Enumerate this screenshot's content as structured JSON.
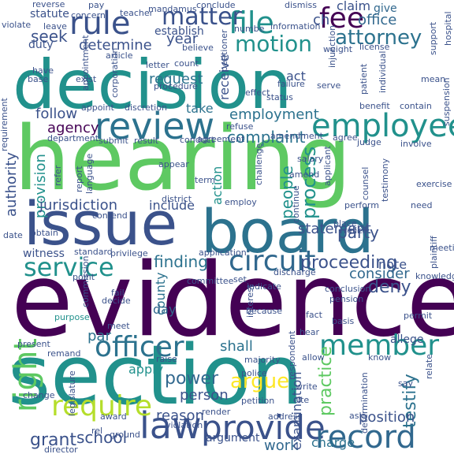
{
  "words": [
    {
      "text": "evidence",
      "color": "#440154"
    },
    {
      "text": "hearing",
      "color": "#5ec962"
    },
    {
      "text": "decision",
      "color": "#21918c"
    },
    {
      "text": "section",
      "color": "#21918c"
    },
    {
      "text": "issue",
      "color": "#3b528b"
    },
    {
      "text": "board",
      "color": "#2c728e"
    },
    {
      "text": "review",
      "color": "#2c728e"
    },
    {
      "text": "provide",
      "color": "#3b528b"
    },
    {
      "text": "employee",
      "color": "#21918c"
    },
    {
      "text": "circuit",
      "color": "#31688e"
    },
    {
      "text": "record",
      "color": "#31688e"
    },
    {
      "text": "service",
      "color": "#21918c"
    },
    {
      "text": "officer",
      "color": "#2c728e"
    },
    {
      "text": "member",
      "color": "#21918c"
    },
    {
      "text": "law",
      "color": "#3b528b"
    },
    {
      "text": "rule",
      "color": "#3b528b"
    },
    {
      "text": "file",
      "color": "#21918c"
    },
    {
      "text": "fee",
      "color": "#440154"
    },
    {
      "text": "require",
      "color": "#b5de2b"
    },
    {
      "text": "matter",
      "color": "#3b528b"
    },
    {
      "text": "motion",
      "color": "#21918c"
    },
    {
      "text": "attorney",
      "color": "#2c728e"
    },
    {
      "text": "right",
      "color": "#5ec962"
    },
    {
      "text": "argue",
      "color": "#fde725"
    },
    {
      "text": "school",
      "color": "#3b528b"
    },
    {
      "text": "grant",
      "color": "#3b528b"
    },
    {
      "text": "power",
      "color": "#31688e"
    },
    {
      "text": "proceeding",
      "color": "#3b528b"
    },
    {
      "text": "finding",
      "color": "#2c728e"
    },
    {
      "text": "party",
      "color": "#3b528b"
    },
    {
      "text": "agency",
      "color": "#440154"
    },
    {
      "text": "complaint",
      "color": "#2c728e"
    },
    {
      "text": "employment",
      "color": "#2c728e"
    },
    {
      "text": "process",
      "color": "#21918c"
    },
    {
      "text": "people",
      "color": "#21918c"
    },
    {
      "text": "practice",
      "color": "#5ec962"
    },
    {
      "text": "testify",
      "color": "#2c728e"
    },
    {
      "text": "position",
      "color": "#3b528b"
    },
    {
      "text": "person",
      "color": "#3b528b"
    },
    {
      "text": "reason",
      "color": "#3b528b"
    },
    {
      "text": "deny",
      "color": "#3b528b"
    },
    {
      "text": "consider",
      "color": "#31688e"
    },
    {
      "text": "shall",
      "color": "#2c728e"
    },
    {
      "text": "work",
      "color": "#31688e"
    },
    {
      "text": "charge",
      "color": "#2c728e"
    },
    {
      "text": "determine",
      "color": "#3b528b"
    },
    {
      "text": "year",
      "color": "#3b528b"
    },
    {
      "text": "seek",
      "color": "#3b528b"
    },
    {
      "text": "request",
      "color": "#2c728e"
    },
    {
      "text": "follow",
      "color": "#3b528b"
    },
    {
      "text": "act",
      "color": "#3b528b"
    },
    {
      "text": "statute",
      "color": "#3b528b"
    },
    {
      "text": "duty",
      "color": "#3b528b"
    },
    {
      "text": "establish",
      "color": "#3b528b"
    },
    {
      "text": "give",
      "color": "#31688e"
    },
    {
      "text": "office",
      "color": "#31688e"
    },
    {
      "text": "claim",
      "color": "#3b528b"
    },
    {
      "text": "ch",
      "color": "#3b528b"
    },
    {
      "text": "provision",
      "color": "#21918c"
    },
    {
      "text": "authority",
      "color": "#3b528b"
    },
    {
      "text": "jurisdiction",
      "color": "#3b528b"
    },
    {
      "text": "include",
      "color": "#3b528b"
    },
    {
      "text": "statement",
      "color": "#3b528b"
    },
    {
      "text": "note",
      "color": "#3b528b"
    },
    {
      "text": "take",
      "color": "#2c728e"
    },
    {
      "text": "receive",
      "color": "#3b528b"
    },
    {
      "text": "action",
      "color": "#21918c"
    },
    {
      "text": "county",
      "color": "#2c728e"
    },
    {
      "text": "day",
      "color": "#31688e"
    },
    {
      "text": "apply",
      "color": "#21918c"
    },
    {
      "text": "par",
      "color": "#2c728e"
    },
    {
      "text": "witness",
      "color": "#3b528b"
    },
    {
      "text": "standard",
      "color": "#3b528b"
    },
    {
      "text": "privilege",
      "color": "#3b528b"
    },
    {
      "text": "committee",
      "color": "#3b528b"
    },
    {
      "text": "fail",
      "color": "#3b528b"
    },
    {
      "text": "decide",
      "color": "#3b528b"
    },
    {
      "text": "meet",
      "color": "#3b528b"
    },
    {
      "text": "purpose",
      "color": "#21918c"
    },
    {
      "text": "present",
      "color": "#3b528b"
    },
    {
      "text": "remand",
      "color": "#3b528b"
    },
    {
      "text": "raise",
      "color": "#3b528b"
    },
    {
      "text": "majority",
      "color": "#3b528b"
    },
    {
      "text": "police",
      "color": "#3b528b"
    },
    {
      "text": "petition",
      "color": "#3b528b"
    },
    {
      "text": "violation",
      "color": "#3b528b"
    },
    {
      "text": "argument",
      "color": "#3b528b"
    },
    {
      "text": "address",
      "color": "#3b528b"
    },
    {
      "text": "award",
      "color": "#3b528b"
    },
    {
      "text": "ground",
      "color": "#3b528b"
    },
    {
      "text": "change",
      "color": "#3b528b"
    },
    {
      "text": "rel",
      "color": "#3b528b"
    },
    {
      "text": "legislature",
      "color": "#3b528b"
    },
    {
      "text": "conclusion",
      "color": "#3b528b"
    },
    {
      "text": "meeting",
      "color": "#3b528b"
    },
    {
      "text": "pension",
      "color": "#3b528b"
    },
    {
      "text": "permit",
      "color": "#3b528b"
    },
    {
      "text": "allege",
      "color": "#3b528b"
    },
    {
      "text": "determination",
      "color": "#3b528b"
    },
    {
      "text": "examination",
      "color": "#3b528b"
    },
    {
      "text": "cite",
      "color": "#3b528b"
    },
    {
      "text": "write",
      "color": "#3b528b"
    },
    {
      "text": "say",
      "color": "#3b528b"
    },
    {
      "text": "basis",
      "color": "#3b528b"
    },
    {
      "text": "interest",
      "color": "#3b528b"
    },
    {
      "text": "because",
      "color": "#3b528b"
    },
    {
      "text": "indicate",
      "color": "#3b528b"
    },
    {
      "text": "set",
      "color": "#3b528b"
    },
    {
      "text": "respondent",
      "color": "#3b528b"
    },
    {
      "text": "allow",
      "color": "#3b528b"
    },
    {
      "text": "hear",
      "color": "#3b528b"
    },
    {
      "text": "salary",
      "color": "#3b528b"
    },
    {
      "text": "amend",
      "color": "#3b528b"
    },
    {
      "text": "challenge",
      "color": "#3b528b"
    },
    {
      "text": "term",
      "color": "#3b528b"
    },
    {
      "text": "district",
      "color": "#3b528b"
    },
    {
      "text": "contend",
      "color": "#3b528b"
    },
    {
      "text": "appear",
      "color": "#3b528b"
    },
    {
      "text": "conduct",
      "color": "#3b528b"
    },
    {
      "text": "agreement",
      "color": "#3b528b"
    },
    {
      "text": "result",
      "color": "#3b528b"
    },
    {
      "text": "submit",
      "color": "#3b528b"
    },
    {
      "text": "department",
      "color": "#3b528b"
    },
    {
      "text": "refuse",
      "color": "#3b528b"
    },
    {
      "text": "effect",
      "color": "#3b528b"
    },
    {
      "text": "status",
      "color": "#3b528b"
    },
    {
      "text": "failure",
      "color": "#3b528b"
    },
    {
      "text": "procedure",
      "color": "#3b528b"
    },
    {
      "text": "count",
      "color": "#3b528b"
    },
    {
      "text": "letter",
      "color": "#3b528b"
    },
    {
      "text": "appointment",
      "color": "#3b528b"
    },
    {
      "text": "base",
      "color": "#3b528b"
    },
    {
      "text": "have",
      "color": "#3b528b"
    },
    {
      "text": "exist",
      "color": "#3b528b"
    },
    {
      "text": "appoint",
      "color": "#3b528b"
    },
    {
      "text": "discretion",
      "color": "#3b528b"
    },
    {
      "text": "mandamus",
      "color": "#3b528b"
    },
    {
      "text": "conclude",
      "color": "#3b528b"
    },
    {
      "text": "dismiss",
      "color": "#3b528b"
    },
    {
      "text": "reverse",
      "color": "#3b528b"
    },
    {
      "text": "pay",
      "color": "#3b528b"
    },
    {
      "text": "teacher",
      "color": "#3b528b"
    },
    {
      "text": "violate",
      "color": "#3b528b"
    },
    {
      "text": "leave",
      "color": "#3b528b"
    },
    {
      "text": "concern",
      "color": "#3b528b"
    },
    {
      "text": "believe",
      "color": "#3b528b"
    },
    {
      "text": "article",
      "color": "#3b528b"
    },
    {
      "text": "information",
      "color": "#3b528b"
    },
    {
      "text": "license",
      "color": "#3b528b"
    },
    {
      "text": "weight",
      "color": "#3b528b"
    },
    {
      "text": "patient",
      "color": "#3b528b"
    },
    {
      "text": "individual",
      "color": "#3b528b"
    },
    {
      "text": "suspension",
      "color": "#3b528b"
    },
    {
      "text": "support",
      "color": "#3b528b"
    },
    {
      "text": "hospital",
      "color": "#3b528b"
    },
    {
      "text": "benefit",
      "color": "#3b528b"
    },
    {
      "text": "involve",
      "color": "#3b528b"
    },
    {
      "text": "exercise",
      "color": "#3b528b"
    },
    {
      "text": "need",
      "color": "#3b528b"
    },
    {
      "text": "place",
      "color": "#3b528b"
    },
    {
      "text": "relief",
      "color": "#3b528b"
    },
    {
      "text": "agree",
      "color": "#3b528b"
    },
    {
      "text": "judge",
      "color": "#3b528b"
    },
    {
      "text": "counsel",
      "color": "#3b528b"
    },
    {
      "text": "testimony",
      "color": "#3b528b"
    },
    {
      "text": "perform",
      "color": "#3b528b"
    },
    {
      "text": "applicant",
      "color": "#3b528b"
    },
    {
      "text": "continue",
      "color": "#3b528b"
    },
    {
      "text": "obtain",
      "color": "#3b528b"
    },
    {
      "text": "date",
      "color": "#3b528b"
    },
    {
      "text": "employ",
      "color": "#3b528b"
    },
    {
      "text": "application",
      "color": "#3b528b"
    },
    {
      "text": "point",
      "color": "#3b528b"
    },
    {
      "text": "commission",
      "color": "#3b528b"
    },
    {
      "text": "refer",
      "color": "#3b528b"
    },
    {
      "text": "report",
      "color": "#3b528b"
    },
    {
      "text": "language",
      "color": "#3b528b"
    },
    {
      "text": "requirement",
      "color": "#3b528b"
    },
    {
      "text": "corporation",
      "color": "#3b528b"
    },
    {
      "text": "petitioner",
      "color": "#3b528b"
    },
    {
      "text": "numbe",
      "color": "#3b528b"
    },
    {
      "text": "mean",
      "color": "#3b528b"
    },
    {
      "text": "serve",
      "color": "#3b528b"
    },
    {
      "text": "plaintiff",
      "color": "#3b528b"
    },
    {
      "text": "knowledge",
      "color": "#3b528b"
    },
    {
      "text": "fact",
      "color": "#3b528b"
    },
    {
      "text": "relate",
      "color": "#3b528b"
    },
    {
      "text": "ask",
      "color": "#3b528b"
    },
    {
      "text": "director",
      "color": "#3b528b"
    },
    {
      "text": "render",
      "color": "#3b528b"
    },
    {
      "text": "know",
      "color": "#3b528b"
    },
    {
      "text": "discharge",
      "color": "#3b528b"
    },
    {
      "text": "amendment",
      "color": "#3b528b"
    },
    {
      "text": "contain",
      "color": "#3b528b"
    },
    {
      "text": "injunction",
      "color": "#3b528b"
    }
  ]
}
